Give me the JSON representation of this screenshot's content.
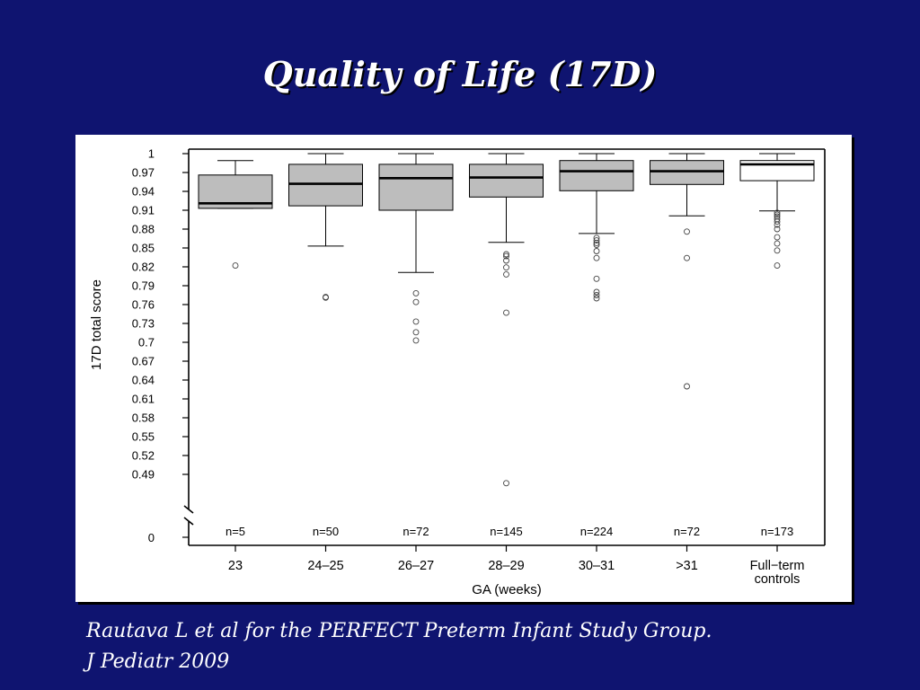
{
  "slide": {
    "title": "Quality of Life (17D)",
    "citation_line1": "Rautava L et al for the PERFECT Preterm Infant Study Group.",
    "citation_line2": "J Pediatr 2009"
  },
  "colors": {
    "background": "#0f1470",
    "box_fill": "#bdbdbd",
    "control_box_fill": "#ffffff",
    "median": "#000000"
  },
  "chart_data": {
    "type": "box",
    "xlabel": "GA (weeks)",
    "ylabel": "17D total score",
    "ylim": [
      0.46,
      1.0
    ],
    "axis_break": true,
    "y_ticks": [
      "1",
      "0.97",
      "0.94",
      "0.91",
      "0.88",
      "0.85",
      "0.82",
      "0.79",
      "0.76",
      "0.73",
      "0.7",
      "0.67",
      "0.64",
      "0.61",
      "0.58",
      "0.55",
      "0.52",
      "0.49"
    ],
    "y_zero_label": "0",
    "categories": [
      {
        "label": [
          "23"
        ],
        "n": "n=5",
        "q1": 0.913,
        "median": 0.921,
        "q3": 0.966,
        "whisker_low": 0.913,
        "whisker_high": 0.989,
        "outliers": [
          0.822
        ],
        "fill": "gray"
      },
      {
        "label": [
          "24–25"
        ],
        "n": "n=50",
        "q1": 0.917,
        "median": 0.952,
        "q3": 0.983,
        "whisker_low": 0.853,
        "whisker_high": 1.0,
        "outliers": [
          0.772,
          0.771
        ],
        "fill": "gray"
      },
      {
        "label": [
          "26–27"
        ],
        "n": "n=72",
        "q1": 0.91,
        "median": 0.961,
        "q3": 0.983,
        "whisker_low": 0.811,
        "whisker_high": 1.0,
        "outliers": [
          0.778,
          0.764,
          0.733,
          0.716,
          0.703
        ],
        "fill": "gray"
      },
      {
        "label": [
          "28–29"
        ],
        "n": "n=145",
        "q1": 0.931,
        "median": 0.962,
        "q3": 0.983,
        "whisker_low": 0.859,
        "whisker_high": 1.0,
        "outliers": [
          0.84,
          0.837,
          0.83,
          0.819,
          0.808,
          0.747,
          0.476
        ],
        "fill": "gray"
      },
      {
        "label": [
          "30–31"
        ],
        "n": "n=224",
        "q1": 0.941,
        "median": 0.972,
        "q3": 0.989,
        "whisker_low": 0.873,
        "whisker_high": 1.0,
        "outliers": [
          0.866,
          0.862,
          0.858,
          0.855,
          0.845,
          0.834,
          0.801,
          0.78,
          0.775,
          0.77
        ],
        "fill": "gray"
      },
      {
        "label": [
          ">31"
        ],
        "n": "n=72",
        "q1": 0.951,
        "median": 0.972,
        "q3": 0.989,
        "whisker_low": 0.901,
        "whisker_high": 1.0,
        "outliers": [
          0.876,
          0.834,
          0.63
        ],
        "fill": "gray"
      },
      {
        "label": [
          "Full−term",
          "controls"
        ],
        "n": "n=173",
        "q1": 0.957,
        "median": 0.983,
        "q3": 0.989,
        "whisker_low": 0.909,
        "whisker_high": 1.0,
        "outliers": [
          0.906,
          0.903,
          0.9,
          0.896,
          0.892,
          0.887,
          0.88,
          0.867,
          0.857,
          0.846,
          0.822
        ],
        "fill": "white"
      }
    ]
  }
}
